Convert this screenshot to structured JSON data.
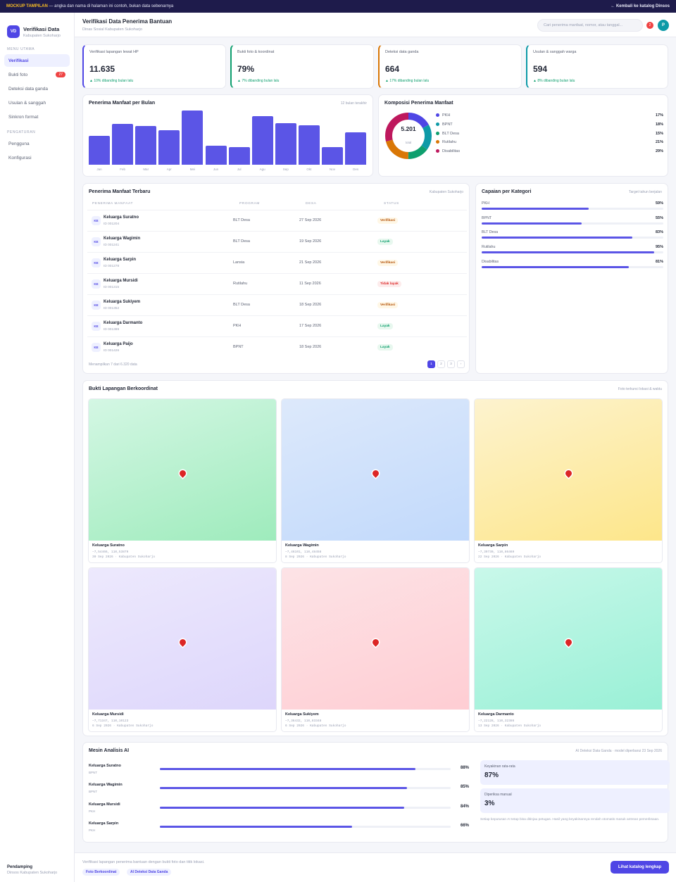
{
  "topbar": {
    "tag": "MOCKUP TAMPILAN",
    "text": "— angka dan nama di halaman ini contoh, bukan data sebenarnya",
    "back": "← Kembali ke katalog Dinsos"
  },
  "sidebar": {
    "logo": "VD",
    "title": "Verifikasi Data",
    "subtitle": "Kabupaten Sukoharjo",
    "section1": "MENU UTAMA",
    "items": [
      {
        "label": "Verifikasi"
      },
      {
        "label": "Bukti foto",
        "badge": "27"
      },
      {
        "label": "Deteksi data ganda"
      },
      {
        "label": "Usulan & sanggah"
      },
      {
        "label": "Sinkron format"
      }
    ],
    "section2": "PENGATURAN",
    "items2": [
      {
        "label": "Pengguna"
      },
      {
        "label": "Konfigurasi"
      }
    ],
    "footer": {
      "title": "Pendamping",
      "sub": "Dinsos Kabupaten Sukoharjo"
    }
  },
  "header": {
    "title": "Verifikasi Data Penerima Bantuan",
    "subtitle": "Dinas Sosial Kabupaten Sukoharjo",
    "search_placeholder": "Cari penerima manfaat, nomor, atau tanggal...",
    "notif": "2",
    "avatar": "P"
  },
  "kpis": [
    {
      "label": "Verifikasi lapangan lewat HP",
      "value": "11.635",
      "delta": "▲ 10% dibanding bulan lalu",
      "color": "#4f46e5"
    },
    {
      "label": "Bukti foto & koordinat",
      "value": "79%",
      "delta": "▲ 7% dibanding bulan lalu",
      "color": "#0e9f6e"
    },
    {
      "label": "Deteksi data ganda",
      "value": "664",
      "delta": "▲ 17% dibanding bulan lalu",
      "color": "#d97706"
    },
    {
      "label": "Usulan & sanggah warga",
      "value": "594",
      "delta": "▲ 8% dibanding bulan lalu",
      "color": "#0e9aa7"
    }
  ],
  "chart_data": [
    {
      "type": "bar",
      "title": "Penerima Manfaat per Bulan",
      "subtitle": "12 bulan terakhir",
      "categories": [
        "Jan",
        "Feb",
        "Mar",
        "Apr",
        "Mei",
        "Jun",
        "Jul",
        "Agu",
        "Sep",
        "Okt",
        "Nov",
        "Des"
      ],
      "values": [
        53,
        75,
        72,
        64,
        100,
        35,
        32,
        90,
        77,
        73,
        32,
        60
      ]
    },
    {
      "type": "pie",
      "title": "Komposisi Penerima Manfaat",
      "center_value": "5.201",
      "center_label": "total",
      "categories": [
        "PKH",
        "BPNT",
        "BLT Desa",
        "Rutilahu",
        "Disabilitas"
      ],
      "values": [
        17,
        18,
        15,
        21,
        29
      ],
      "colors": [
        "#4f46e5",
        "#0e9aa7",
        "#0e9f6e",
        "#d97706",
        "#be185d"
      ]
    }
  ],
  "recent": {
    "title": "Penerima Manfaat Terbaru",
    "subtitle": "Kabupaten Sukoharjo",
    "columns": [
      "PENERIMA MANFAAT",
      "PROGRAM",
      "DESA",
      "STATUS"
    ],
    "rows": [
      {
        "init": "KE",
        "name": "Keluarga Suratno",
        "id": "ID 001204",
        "program": "BLT Desa",
        "date": "27 Sep 2026",
        "status": "Verifikasi",
        "cls": "ver"
      },
      {
        "init": "KE",
        "name": "Keluarga Wagimin",
        "id": "ID 001241",
        "program": "BLT Desa",
        "date": "19 Sep 2026",
        "status": "Layak",
        "cls": "lay"
      },
      {
        "init": "KE",
        "name": "Keluarga Sarpin",
        "id": "ID 001278",
        "program": "Lansia",
        "date": "21 Sep 2026",
        "status": "Verifikasi",
        "cls": "ver"
      },
      {
        "init": "KE",
        "name": "Keluarga Mursidi",
        "id": "ID 001315",
        "program": "Rutilahu",
        "date": "11 Sep 2026",
        "status": "Tidak layak",
        "cls": "tid"
      },
      {
        "init": "KE",
        "name": "Keluarga Sukiyem",
        "id": "ID 001352",
        "program": "BLT Desa",
        "date": "18 Sep 2026",
        "status": "Verifikasi",
        "cls": "ver"
      },
      {
        "init": "KE",
        "name": "Keluarga Darmanto",
        "id": "ID 001389",
        "program": "PKH",
        "date": "17 Sep 2026",
        "status": "Layak",
        "cls": "lay"
      },
      {
        "init": "KE",
        "name": "Keluarga Paijo",
        "id": "ID 001426",
        "program": "BPNT",
        "date": "18 Sep 2026",
        "status": "Layak",
        "cls": "lay"
      }
    ],
    "footer": "Menampilkan 7 dari 6.320 data",
    "pages": [
      "1",
      "2",
      "3",
      "›"
    ]
  },
  "achievement": {
    "title": "Capaian per Kategori",
    "subtitle": "Target tahun berjalan",
    "items": [
      {
        "name": "PKH",
        "pct": "59%",
        "value": 59
      },
      {
        "name": "BPNT",
        "pct": "55%",
        "value": 55
      },
      {
        "name": "BLT Desa",
        "pct": "83%",
        "value": 83
      },
      {
        "name": "Rutilahu",
        "pct": "95%",
        "value": 95
      },
      {
        "name": "Disabilitas",
        "pct": "81%",
        "value": 81
      }
    ]
  },
  "evidence": {
    "title": "Bukti Lapangan Berkoordinat",
    "subtitle": "Foto terkunci lokasi & waktu",
    "items": [
      {
        "name": "Keluarga Suratno",
        "coord": "−7,54466, 110,53879",
        "meta": "30 Sep 2026 · Kabupaten Sukoharjo",
        "c1": "#d4f7e4",
        "c2": "#9eebbc"
      },
      {
        "name": "Keluarga Wagimin",
        "coord": "−7,46101, 110,48458",
        "meta": "8 Sep 2026 · Kabupaten Sukoharjo",
        "c1": "#dde9fb",
        "c2": "#c1d9fb"
      },
      {
        "name": "Keluarga Sarpin",
        "coord": "−7,39730, 110,86469",
        "meta": "22 Sep 2026 · Kabupaten Sukoharjo",
        "c1": "#fdf3cf",
        "c2": "#fde68a"
      },
      {
        "name": "Keluarga Mursidi",
        "coord": "−7,71347, 110,10123",
        "meta": "6 Sep 2026 · Kabupaten Sukoharjo",
        "c1": "#ede9fd",
        "c2": "#ddd6fb"
      },
      {
        "name": "Keluarga Sukiyem",
        "coord": "−7,36432, 110,83348",
        "meta": "6 Sep 2026 · Kabupaten Sukoharjo",
        "c1": "#fde3e6",
        "c2": "#fecdd3"
      },
      {
        "name": "Keluarga Darmanto",
        "coord": "−7,22128, 110,32386",
        "meta": "13 Sep 2026 · Kabupaten Sukoharjo",
        "c1": "#c9f8ea",
        "c2": "#99f0d6"
      }
    ]
  },
  "ai": {
    "title": "Mesin Analisis AI",
    "subtitle": "AI Deteksi Data Ganda · model diperbarui 23 Sep 2026",
    "items": [
      {
        "name": "Keluarga Suratno",
        "program": "BPNT",
        "pct": "88%",
        "value": 88
      },
      {
        "name": "Keluarga Wagimin",
        "program": "BPNT",
        "pct": "85%",
        "value": 85
      },
      {
        "name": "Keluarga Mursidi",
        "program": "PKH",
        "pct": "84%",
        "value": 84
      },
      {
        "name": "Keluarga Sarpin",
        "program": "PKH",
        "pct": "66%",
        "value": 66
      }
    ],
    "stat1": {
      "label": "Keyakinan rata-rata",
      "value": "87%"
    },
    "stat2": {
      "label": "Diperiksa manual",
      "value": "3%"
    },
    "note": "Setiap keputusan AI tetap bisa ditinjau petugas. Hasil yang keyakinannya rendah otomatis masuk antrean pemeriksaan."
  },
  "footer": {
    "text": "Verifikasi lapangan penerima bantuan dengan bukti foto dan titik lokasi.",
    "pill1": "Foto Berkoordinat",
    "pill2": "AI Deteksi Data Ganda",
    "cta": "Lihat katalog lengkap"
  }
}
